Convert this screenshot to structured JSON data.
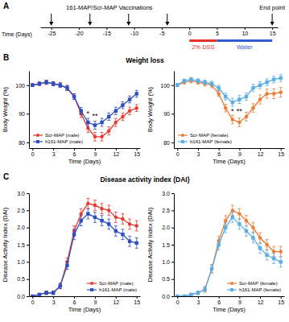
{
  "figure": {
    "panels": [
      {
        "label": "A"
      },
      {
        "label": "B",
        "title": "Weight loss"
      },
      {
        "label": "C",
        "title": "Disease activity index (DAI)"
      }
    ]
  },
  "chart_data": [
    {
      "type": "timeline",
      "xlabel": "Time (Days)",
      "xlim": [
        -27,
        16
      ],
      "xticks": [
        -25,
        -20,
        -15,
        -10,
        -5,
        0,
        5,
        10,
        15
      ],
      "events": [
        {
          "label": "161-MAP/Scr-MAP Vaccinations",
          "x": [
            -25,
            -18,
            -11,
            -4
          ]
        },
        {
          "label": "End point",
          "x": [
            15
          ]
        }
      ],
      "periods": [
        {
          "label": "2% DSS",
          "start": 0,
          "end": 5,
          "color": "#e53028"
        },
        {
          "label": "Water",
          "start": 5,
          "end": 15,
          "color": "#2f5bd0"
        }
      ]
    },
    {
      "type": "line",
      "xlabel": "Time (Days)",
      "ylabel": "Body Weight (%)",
      "xlim": [
        -0.5,
        15.5
      ],
      "xticks": [
        0,
        3,
        6,
        9,
        12,
        15
      ],
      "ylim": [
        78,
        105
      ],
      "yticks": [
        80,
        90,
        100
      ],
      "legend": "lower left",
      "grid": false,
      "x": [
        0,
        1,
        2,
        3,
        4,
        5,
        6,
        7,
        8,
        9,
        10,
        11,
        12,
        13,
        14,
        15
      ],
      "series": [
        {
          "name": "Scr-MAP (male)",
          "color": "#e8382f",
          "marker": "circle",
          "values": [
            100,
            100.5,
            101,
            100.5,
            100,
            99,
            96,
            90,
            85,
            82,
            82,
            84,
            87,
            89,
            91,
            92
          ],
          "errors": [
            0.5,
            0.6,
            0.7,
            0.7,
            0.8,
            0.9,
            1.0,
            1.3,
            1.5,
            1.5,
            1.5,
            1.4,
            1.4,
            1.3,
            1.3,
            1.2
          ]
        },
        {
          "name": "h161-MAP (male)",
          "color": "#2d4fc4",
          "marker": "square",
          "values": [
            100,
            100.5,
            101,
            100.5,
            100,
            99,
            96,
            91,
            87,
            86,
            87,
            89,
            91,
            93,
            95,
            97
          ],
          "errors": [
            0.5,
            0.6,
            0.7,
            0.7,
            0.8,
            0.9,
            1.0,
            1.2,
            1.4,
            1.4,
            1.4,
            1.3,
            1.3,
            1.2,
            1.2,
            1.2
          ]
        }
      ],
      "annotations": [
        {
          "x": 8,
          "y": 89.2,
          "text": "*"
        },
        {
          "x": 9,
          "y": 88.4,
          "text": "**"
        }
      ]
    },
    {
      "type": "line",
      "xlabel": "Time (Days)",
      "ylabel": "Body Weight (%)",
      "xlim": [
        -0.5,
        15.5
      ],
      "xticks": [
        0,
        3,
        6,
        9,
        12,
        15
      ],
      "ylim": [
        78,
        105
      ],
      "yticks": [
        80,
        90,
        100
      ],
      "legend": "lower left",
      "grid": false,
      "x": [
        0,
        1,
        2,
        3,
        4,
        5,
        6,
        7,
        8,
        9,
        10,
        11,
        12,
        13,
        14,
        15
      ],
      "series": [
        {
          "name": "Scr-MAP (female)",
          "color": "#f07c34",
          "marker": "circle",
          "values": [
            100,
            101,
            101.5,
            101,
            100.5,
            100,
            97,
            92,
            88,
            87,
            89,
            92,
            95,
            97,
            97,
            97.5
          ],
          "errors": [
            0.5,
            0.6,
            0.7,
            0.7,
            0.8,
            0.9,
            1.0,
            1.3,
            1.5,
            1.5,
            1.5,
            1.5,
            1.6,
            1.6,
            1.7,
            1.7
          ]
        },
        {
          "name": "h161-MAP (female)",
          "color": "#5aaee6",
          "marker": "square",
          "values": [
            100,
            101.5,
            102,
            101.5,
            101,
            100.5,
            99,
            96,
            94,
            95,
            96,
            99,
            100,
            101,
            102,
            102.5
          ],
          "errors": [
            0.5,
            0.6,
            0.7,
            0.7,
            0.8,
            0.9,
            1.0,
            1.2,
            1.4,
            1.4,
            1.3,
            1.3,
            1.2,
            1.2,
            1.2,
            1.2
          ]
        }
      ],
      "annotations": [
        {
          "x": 8,
          "y": 90,
          "text": "*"
        },
        {
          "x": 9,
          "y": 90,
          "text": "**"
        }
      ]
    },
    {
      "type": "line",
      "xlabel": "Time (Days)",
      "ylabel": "Disease Activity Index (DAI)",
      "xlim": [
        -0.5,
        15.5
      ],
      "xticks": [
        0,
        3,
        6,
        9,
        12,
        15
      ],
      "ylim": [
        0,
        3
      ],
      "yticks": [
        {
          "value": 0,
          "label": "0.0"
        },
        0.5,
        {
          "value": 1,
          "label": "1.0"
        },
        1.5,
        {
          "value": 2,
          "label": "2.0"
        },
        2.5,
        {
          "value": 3,
          "label": "3.0"
        }
      ],
      "legend": "lower right",
      "grid": false,
      "x": [
        0,
        1,
        2,
        3,
        4,
        5,
        6,
        7,
        8,
        9,
        10,
        11,
        12,
        13,
        14,
        15
      ],
      "series": [
        {
          "name": "Scr-MAP (male)",
          "color": "#e8382f",
          "marker": "circle",
          "values": [
            0,
            0.05,
            0.1,
            0.1,
            0.3,
            1.0,
            1.9,
            2.4,
            2.7,
            2.65,
            2.55,
            2.5,
            2.3,
            2.25,
            2.1,
            2.05
          ],
          "errors": [
            0,
            0.03,
            0.05,
            0.05,
            0.08,
            0.12,
            0.15,
            0.15,
            0.15,
            0.15,
            0.15,
            0.15,
            0.15,
            0.15,
            0.15,
            0.15
          ]
        },
        {
          "name": "h161-MAP (male)",
          "color": "#2d4fc4",
          "marker": "square",
          "values": [
            0,
            0.05,
            0.1,
            0.1,
            0.3,
            0.9,
            1.8,
            2.2,
            2.4,
            2.3,
            2.2,
            2.1,
            1.9,
            1.8,
            1.6,
            1.55
          ],
          "errors": [
            0,
            0.03,
            0.05,
            0.05,
            0.08,
            0.12,
            0.15,
            0.15,
            0.15,
            0.15,
            0.15,
            0.15,
            0.15,
            0.15,
            0.15,
            0.15
          ]
        }
      ]
    },
    {
      "type": "line",
      "xlabel": "Time (Days)",
      "ylabel": "Disease Activity Index (DAI)",
      "xlim": [
        -0.5,
        15.5
      ],
      "xticks": [
        0,
        3,
        6,
        9,
        12,
        15
      ],
      "ylim": [
        0,
        3
      ],
      "yticks": [
        {
          "value": 0,
          "label": "0.0"
        },
        0.5,
        {
          "value": 1,
          "label": "1.0"
        },
        1.5,
        {
          "value": 2,
          "label": "2.0"
        },
        2.5,
        {
          "value": 3,
          "label": "3.0"
        }
      ],
      "legend": "lower right",
      "grid": false,
      "x": [
        0,
        1,
        2,
        3,
        4,
        5,
        6,
        7,
        8,
        9,
        10,
        11,
        12,
        13,
        14,
        15
      ],
      "series": [
        {
          "name": "Scr-MAP (female)",
          "color": "#f07c34",
          "marker": "circle",
          "values": [
            0,
            0,
            0.05,
            0.1,
            0.2,
            0.8,
            1.6,
            2.2,
            2.5,
            2.4,
            2.2,
            2.0,
            1.7,
            1.5,
            1.3,
            1.3
          ],
          "errors": [
            0,
            0,
            0.03,
            0.05,
            0.08,
            0.12,
            0.15,
            0.15,
            0.15,
            0.15,
            0.15,
            0.15,
            0.15,
            0.15,
            0.15,
            0.15
          ]
        },
        {
          "name": "h161-MAP (female)",
          "color": "#5aaee6",
          "marker": "square",
          "values": [
            0,
            0,
            0.05,
            0.1,
            0.2,
            0.8,
            1.5,
            2.0,
            2.3,
            2.1,
            1.9,
            1.7,
            1.4,
            1.2,
            1.1,
            1.0
          ],
          "errors": [
            0,
            0,
            0.03,
            0.05,
            0.08,
            0.12,
            0.15,
            0.15,
            0.15,
            0.15,
            0.15,
            0.15,
            0.15,
            0.15,
            0.15,
            0.15
          ]
        }
      ]
    }
  ]
}
